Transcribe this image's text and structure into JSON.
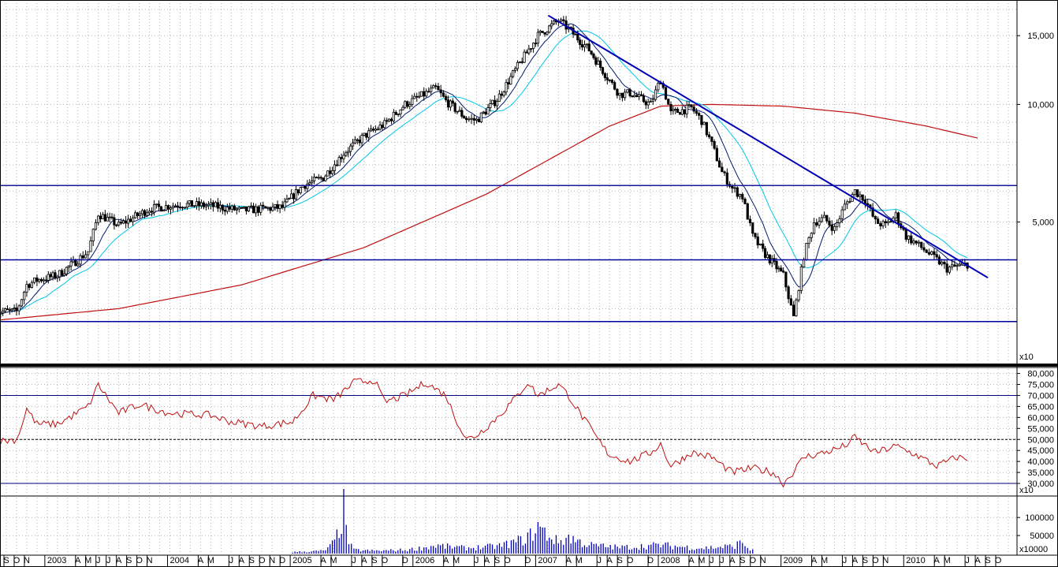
{
  "chart_data": [
    {
      "type": "candlestick",
      "panel": "price",
      "scale": "log",
      "ylim": [
        2700,
        18000
      ],
      "y_ticks": [
        {
          "value": 15000,
          "label": "15,000"
        },
        {
          "value": 10000,
          "label": "10,000"
        },
        {
          "value": 5000,
          "label": "5,000"
        }
      ],
      "scale_note": "x10",
      "series": [
        {
          "kind": "price",
          "approx_path": [
            [
              "2002-08",
              2950
            ],
            [
              "2002-10",
              2950
            ],
            [
              "2002-11",
              3450
            ],
            [
              "2002-12",
              3550
            ],
            [
              "2003-02",
              3650
            ],
            [
              "2003-04",
              4000
            ],
            [
              "2003-05",
              4200
            ],
            [
              "2003-06",
              5250
            ],
            [
              "2003-08",
              4900
            ],
            [
              "2003-11",
              5400
            ],
            [
              "2004-02",
              5550
            ],
            [
              "2004-05",
              5500
            ],
            [
              "2004-08",
              5350
            ],
            [
              "2004-12",
              5450
            ],
            [
              "2005-02",
              6200
            ],
            [
              "2005-04",
              6500
            ],
            [
              "2005-06",
              7500
            ],
            [
              "2005-08",
              8300
            ],
            [
              "2005-10",
              8900
            ],
            [
              "2005-12",
              10000
            ],
            [
              "2006-03",
              11000
            ],
            [
              "2006-04",
              10200
            ],
            [
              "2006-06",
              9200
            ],
            [
              "2006-07",
              9100
            ],
            [
              "2006-09",
              10300
            ],
            [
              "2006-11",
              12500
            ],
            [
              "2007-01",
              15000
            ],
            [
              "2007-03",
              16400
            ],
            [
              "2007-04",
              15600
            ],
            [
              "2007-06",
              13800
            ],
            [
              "2007-08",
              11500
            ],
            [
              "2007-09",
              10600
            ],
            [
              "2007-10",
              10700
            ],
            [
              "2007-12",
              10000
            ],
            [
              "2008-01",
              11600
            ],
            [
              "2008-02",
              9500
            ],
            [
              "2008-04",
              9800
            ],
            [
              "2008-05",
              9100
            ],
            [
              "2008-06",
              7900
            ],
            [
              "2008-07",
              6700
            ],
            [
              "2008-08",
              6100
            ],
            [
              "2008-09",
              5800
            ],
            [
              "2008-10",
              4600
            ],
            [
              "2008-11",
              4200
            ],
            [
              "2009-01",
              3650
            ],
            [
              "2009-02",
              2850
            ],
            [
              "2009-03",
              4100
            ],
            [
              "2009-04",
              5000
            ],
            [
              "2009-05",
              5100
            ],
            [
              "2009-06",
              4800
            ],
            [
              "2009-07",
              5500
            ],
            [
              "2009-08",
              6000
            ],
            [
              "2009-09",
              5700
            ],
            [
              "2009-10",
              5000
            ],
            [
              "2009-11",
              4900
            ],
            [
              "2009-12",
              5200
            ],
            [
              "2010-01",
              4600
            ],
            [
              "2010-02",
              4400
            ],
            [
              "2010-03",
              4200
            ],
            [
              "2010-04",
              4000
            ],
            [
              "2010-05",
              3800
            ],
            [
              "2010-06",
              3850
            ],
            [
              "2010-07",
              3900
            ]
          ]
        },
        {
          "kind": "moving_average_short",
          "color": "#001a6e"
        },
        {
          "kind": "moving_average_medium",
          "color": "#00c8e8"
        },
        {
          "kind": "moving_average_long",
          "color": "#c01010",
          "approx_path": [
            [
              "2002-08",
              2800
            ],
            [
              "2003-08",
              3000
            ],
            [
              "2004-08",
              3450
            ],
            [
              "2005-08",
              4300
            ],
            [
              "2006-08",
              5900
            ],
            [
              "2007-08",
              8800
            ],
            [
              "2008-01",
              9900
            ],
            [
              "2008-06",
              10000
            ],
            [
              "2009-01",
              9900
            ],
            [
              "2009-08",
              9500
            ],
            [
              "2010-03",
              8800
            ],
            [
              "2010-08",
              8200
            ]
          ]
        }
      ],
      "lines": [
        {
          "kind": "trendline",
          "from": [
            "2007-02",
            16900
          ],
          "to": [
            "2010-09",
            3600
          ]
        },
        {
          "kind": "horizontal",
          "value": 6200,
          "color": "#1a1aa0"
        },
        {
          "kind": "horizontal",
          "value": 4000,
          "color": "#0000a0"
        },
        {
          "kind": "horizontal",
          "value": 2780,
          "color": "#0000a0"
        }
      ]
    },
    {
      "type": "line",
      "panel": "oscillator",
      "ylim": [
        25000,
        82000
      ],
      "y_ticks": [
        {
          "value": 80000,
          "label": "80,000"
        },
        {
          "value": 75000,
          "label": "75,000"
        },
        {
          "value": 70000,
          "label": "70,000"
        },
        {
          "value": 65000,
          "label": "65,000"
        },
        {
          "value": 60000,
          "label": "60,000"
        },
        {
          "value": 55000,
          "label": "55,000"
        },
        {
          "value": 50000,
          "label": "50,000"
        },
        {
          "value": 45000,
          "label": "45,000"
        },
        {
          "value": 40000,
          "label": "40,000"
        },
        {
          "value": 35000,
          "label": "35,000"
        },
        {
          "value": 30000,
          "label": "30,000"
        }
      ],
      "scale_note": "x10",
      "reference_lines": [
        {
          "value": 70000,
          "style": "solid",
          "color": "#000080"
        },
        {
          "value": 50000,
          "style": "dashed",
          "color": "#000000"
        },
        {
          "value": 30000,
          "style": "solid",
          "color": "#000080"
        }
      ],
      "series": [
        {
          "color": "#c01010",
          "approx_path": [
            [
              "2002-08",
              49000
            ],
            [
              "2002-10",
              50000
            ],
            [
              "2002-11",
              64000
            ],
            [
              "2002-12",
              57000
            ],
            [
              "2003-02",
              57000
            ],
            [
              "2003-05",
              65000
            ],
            [
              "2003-06",
              75000
            ],
            [
              "2003-08",
              62000
            ],
            [
              "2003-10",
              66000
            ],
            [
              "2004-01",
              62000
            ],
            [
              "2004-05",
              61000
            ],
            [
              "2004-07",
              58000
            ],
            [
              "2004-10",
              56000
            ],
            [
              "2005-01",
              58000
            ],
            [
              "2005-03",
              70000
            ],
            [
              "2005-05",
              68000
            ],
            [
              "2005-07",
              76000
            ],
            [
              "2005-09",
              77000
            ],
            [
              "2005-10",
              67000
            ],
            [
              "2005-12",
              70000
            ],
            [
              "2006-02",
              76000
            ],
            [
              "2006-04",
              70000
            ],
            [
              "2006-06",
              50000
            ],
            [
              "2006-07",
              52000
            ],
            [
              "2006-09",
              60000
            ],
            [
              "2006-11",
              70000
            ],
            [
              "2006-12",
              76000
            ],
            [
              "2007-01",
              70000
            ],
            [
              "2007-03",
              75000
            ],
            [
              "2007-04",
              70000
            ],
            [
              "2007-06",
              56000
            ],
            [
              "2007-08",
              43000
            ],
            [
              "2007-10",
              40000
            ],
            [
              "2007-12",
              44000
            ],
            [
              "2008-01",
              48000
            ],
            [
              "2008-02",
              38000
            ],
            [
              "2008-04",
              44000
            ],
            [
              "2008-06",
              42000
            ],
            [
              "2008-08",
              35000
            ],
            [
              "2008-10",
              37000
            ],
            [
              "2008-12",
              35000
            ],
            [
              "2009-01",
              30000
            ],
            [
              "2009-03",
              42000
            ],
            [
              "2009-05",
              44000
            ],
            [
              "2009-07",
              47000
            ],
            [
              "2009-08",
              51000
            ],
            [
              "2009-10",
              44000
            ],
            [
              "2009-12",
              47000
            ],
            [
              "2010-02",
              43000
            ],
            [
              "2010-04",
              38000
            ],
            [
              "2010-06",
              42000
            ],
            [
              "2010-07",
              41000
            ]
          ]
        }
      ]
    },
    {
      "type": "bar",
      "panel": "volume",
      "ylim": [
        0,
        155000
      ],
      "y_ticks": [
        {
          "value": 100000,
          "label": "100000"
        },
        {
          "value": 50000,
          "label": "50000"
        }
      ],
      "scale_note": "x10000",
      "series": [
        {
          "color": "#0000c0",
          "approx_path": [
            [
              "2005-01",
              5000
            ],
            [
              "2005-04",
              9000
            ],
            [
              "2005-06",
              145000
            ],
            [
              "2005-07",
              12000
            ],
            [
              "2005-09",
              9000
            ],
            [
              "2005-12",
              12000
            ],
            [
              "2006-03",
              26000
            ],
            [
              "2006-06",
              18000
            ],
            [
              "2006-09",
              24000
            ],
            [
              "2006-12",
              52000
            ],
            [
              "2007-01",
              90000
            ],
            [
              "2007-03",
              38000
            ],
            [
              "2007-04",
              55000
            ],
            [
              "2007-06",
              28000
            ],
            [
              "2007-09",
              20000
            ],
            [
              "2008-01",
              28000
            ],
            [
              "2008-05",
              18000
            ],
            [
              "2008-08",
              24000
            ],
            [
              "2008-09",
              38000
            ],
            [
              "2008-10",
              10000
            ]
          ]
        }
      ]
    }
  ],
  "time_axis": [
    {
      "date": "2002-09",
      "label": "S"
    },
    {
      "date": "2002-10",
      "label": "O"
    },
    {
      "date": "2002-11",
      "label": "N"
    },
    {
      "date": "2003-01",
      "label": "2003"
    },
    {
      "date": "2003-04",
      "label": "A"
    },
    {
      "date": "2003-05",
      "label": "M"
    },
    {
      "date": "2003-06",
      "label": "J"
    },
    {
      "date": "2003-07",
      "label": "J"
    },
    {
      "date": "2003-08",
      "label": "A"
    },
    {
      "date": "2003-09",
      "label": "S"
    },
    {
      "date": "2003-10",
      "label": "O"
    },
    {
      "date": "2003-11",
      "label": "N"
    },
    {
      "date": "2004-01",
      "label": "2004"
    },
    {
      "date": "2004-04",
      "label": "A"
    },
    {
      "date": "2004-05",
      "label": "M"
    },
    {
      "date": "2004-07",
      "label": "J"
    },
    {
      "date": "2004-08",
      "label": "A"
    },
    {
      "date": "2004-09",
      "label": "S"
    },
    {
      "date": "2004-10",
      "label": "O"
    },
    {
      "date": "2004-11",
      "label": "N"
    },
    {
      "date": "2004-12",
      "label": "D"
    },
    {
      "date": "2005-01",
      "label": "2005"
    },
    {
      "date": "2005-04",
      "label": "A"
    },
    {
      "date": "2005-05",
      "label": "M"
    },
    {
      "date": "2005-07",
      "label": "J"
    },
    {
      "date": "2005-08",
      "label": "A"
    },
    {
      "date": "2005-09",
      "label": "S"
    },
    {
      "date": "2005-10",
      "label": "O"
    },
    {
      "date": "2005-12",
      "label": "D"
    },
    {
      "date": "2006-01",
      "label": "2006"
    },
    {
      "date": "2006-04",
      "label": "A"
    },
    {
      "date": "2006-05",
      "label": "M"
    },
    {
      "date": "2006-07",
      "label": "J"
    },
    {
      "date": "2006-08",
      "label": "A"
    },
    {
      "date": "2006-09",
      "label": "S"
    },
    {
      "date": "2006-10",
      "label": "O"
    },
    {
      "date": "2006-12",
      "label": "D"
    },
    {
      "date": "2007-01",
      "label": "2007"
    },
    {
      "date": "2007-04",
      "label": "A"
    },
    {
      "date": "2007-05",
      "label": "M"
    },
    {
      "date": "2007-07",
      "label": "J"
    },
    {
      "date": "2007-08",
      "label": "A"
    },
    {
      "date": "2007-09",
      "label": "S"
    },
    {
      "date": "2007-10",
      "label": "O"
    },
    {
      "date": "2007-12",
      "label": "D"
    },
    {
      "date": "2008-01",
      "label": "2008"
    },
    {
      "date": "2008-04",
      "label": "A"
    },
    {
      "date": "2008-05",
      "label": "M"
    },
    {
      "date": "2008-06",
      "label": "J"
    },
    {
      "date": "2008-07",
      "label": "J"
    },
    {
      "date": "2008-08",
      "label": "A"
    },
    {
      "date": "2008-09",
      "label": "S"
    },
    {
      "date": "2008-10",
      "label": "O"
    },
    {
      "date": "2008-11",
      "label": "N"
    },
    {
      "date": "2009-01",
      "label": "2009"
    },
    {
      "date": "2009-04",
      "label": "A"
    },
    {
      "date": "2009-05",
      "label": "M"
    },
    {
      "date": "2009-07",
      "label": "J"
    },
    {
      "date": "2009-08",
      "label": "A"
    },
    {
      "date": "2009-09",
      "label": "S"
    },
    {
      "date": "2009-10",
      "label": "O"
    },
    {
      "date": "2009-11",
      "label": "N"
    },
    {
      "date": "2010-01",
      "label": "2010"
    },
    {
      "date": "2010-04",
      "label": "A"
    },
    {
      "date": "2010-05",
      "label": "M"
    },
    {
      "date": "2010-07",
      "label": "J"
    },
    {
      "date": "2010-08",
      "label": "A"
    },
    {
      "date": "2010-09",
      "label": "S"
    },
    {
      "date": "2010-10",
      "label": "O"
    }
  ],
  "grid": true,
  "colors": {
    "grid": "#b4b4b4",
    "candle": "#000000",
    "trendline": "#0000b4"
  }
}
